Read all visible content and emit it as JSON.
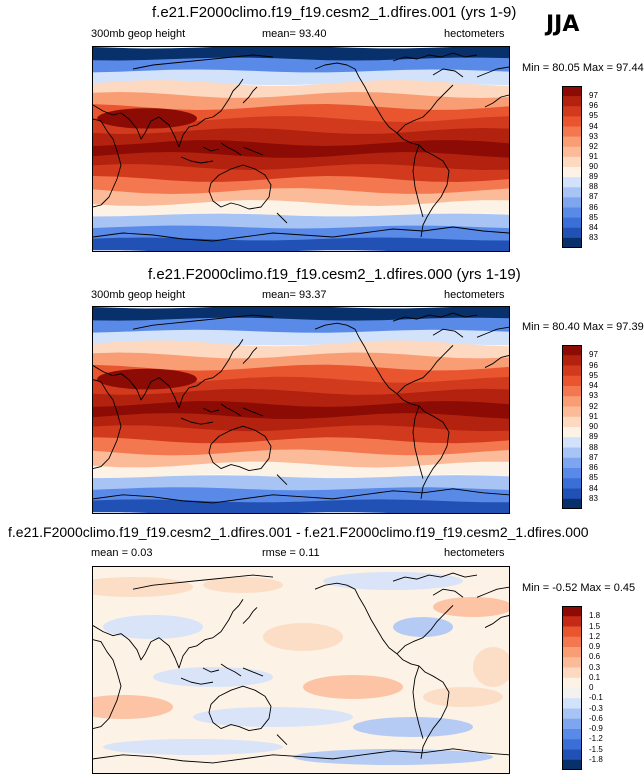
{
  "season_label": "JJA",
  "colors": {
    "warm_scale": [
      "#08306b",
      "#2151b5",
      "#3a6fd8",
      "#5a8ae8",
      "#7da5f0",
      "#a8c4f5",
      "#d2e2fa",
      "#fdf2e6",
      "#fcd9c0",
      "#fbbb99",
      "#f99d75",
      "#f4784f",
      "#e8552e",
      "#d23a1e",
      "#b3220f",
      "#8c0c05"
    ],
    "diff_scale": [
      "#08306b",
      "#2151b5",
      "#3a6fd8",
      "#5a8ae8",
      "#7da5f0",
      "#a8c4f5",
      "#d2e2fa",
      "#f4f2ee",
      "#fdf2e6",
      "#fcd9c0",
      "#fbbb99",
      "#f99d75",
      "#f4784f",
      "#e8552e",
      "#c42a16",
      "#8c0c05"
    ],
    "coastline": "#000000"
  },
  "panels": [
    {
      "title": "f.e21.F2000climo.f19_f19.cesm2_1.dfires.001 (yrs 1-9)",
      "left_label": "300mb geop height",
      "center_label": "mean=  93.40",
      "right_label": "hectometers",
      "minmax": "Min = 80.05 Max =  97.44",
      "colorbar_labels": [
        "97",
        "96",
        "95",
        "94",
        "93",
        "92",
        "91",
        "90",
        "89",
        "88",
        "87",
        "86",
        "85",
        "84",
        "83"
      ],
      "bands": [
        0,
        3,
        6,
        8,
        10,
        12,
        13,
        14,
        15,
        14,
        13,
        11,
        9,
        7,
        5,
        3,
        1
      ]
    },
    {
      "title": "f.e21.F2000climo.f19_f19.cesm2_1.dfires.000 (yrs 1-19)",
      "left_label": "300mb geop height",
      "center_label": "mean=  93.37",
      "right_label": "hectometers",
      "minmax": "Min = 80.40 Max = 97.39",
      "colorbar_labels": [
        "97",
        "96",
        "95",
        "94",
        "93",
        "92",
        "91",
        "90",
        "89",
        "88",
        "87",
        "86",
        "85",
        "84",
        "83"
      ],
      "bands": [
        0,
        3,
        6,
        8,
        10,
        12,
        13,
        14,
        15,
        14,
        13,
        11,
        9,
        7,
        5,
        3,
        1
      ]
    },
    {
      "title": "f.e21.F2000climo.f19_f19.cesm2_1.dfires.001 - f.e21.F2000climo.f19_f19.cesm2_1.dfires.000",
      "left_label": "mean =  0.03",
      "center_label": "rmse =  0.11",
      "right_label": "hectometers",
      "minmax": "Min = -0.52 Max =  0.45",
      "colorbar_labels": [
        "1.8",
        "1.5",
        "1.2",
        "0.9",
        "0.6",
        "0.3",
        "0.1",
        "0",
        "-0.1",
        "-0.3",
        "-0.6",
        "-0.9",
        "-1.2",
        "-1.5",
        "-1.8"
      ]
    }
  ]
}
